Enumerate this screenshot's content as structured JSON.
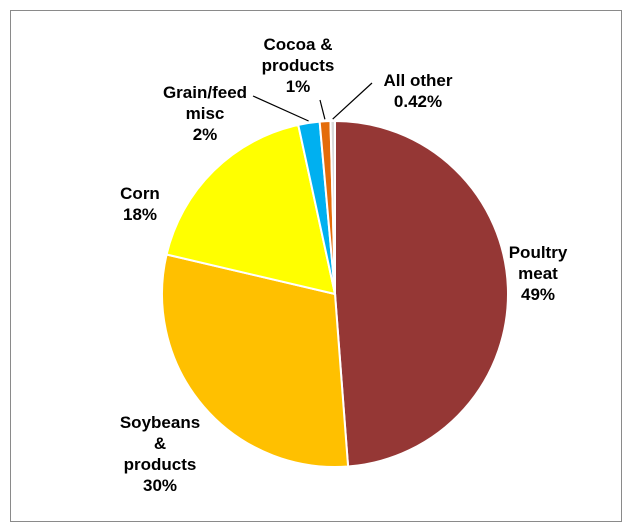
{
  "chart_data": {
    "type": "pie",
    "title": "",
    "slices": [
      {
        "label_lines": [
          "Poultry",
          "meat"
        ],
        "value_label": "49%",
        "value": 49,
        "color": "#953735"
      },
      {
        "label_lines": [
          "Soybeans",
          "&",
          "products"
        ],
        "value_label": "30%",
        "value": 30,
        "color": "#FFC000"
      },
      {
        "label_lines": [
          "Corn"
        ],
        "value_label": "18%",
        "value": 18,
        "color": "#FFFF00"
      },
      {
        "label_lines": [
          "Grain/feed",
          "misc"
        ],
        "value_label": "2%",
        "value": 2,
        "color": "#00B0F0"
      },
      {
        "label_lines": [
          "Cocoa &",
          "products"
        ],
        "value_label": "1%",
        "value": 1,
        "color": "#E46C0A"
      },
      {
        "label_lines": [
          "All other"
        ],
        "value_label": "0.42%",
        "value": 0.42,
        "color": "#D9D9D9"
      }
    ],
    "legend": "none"
  }
}
